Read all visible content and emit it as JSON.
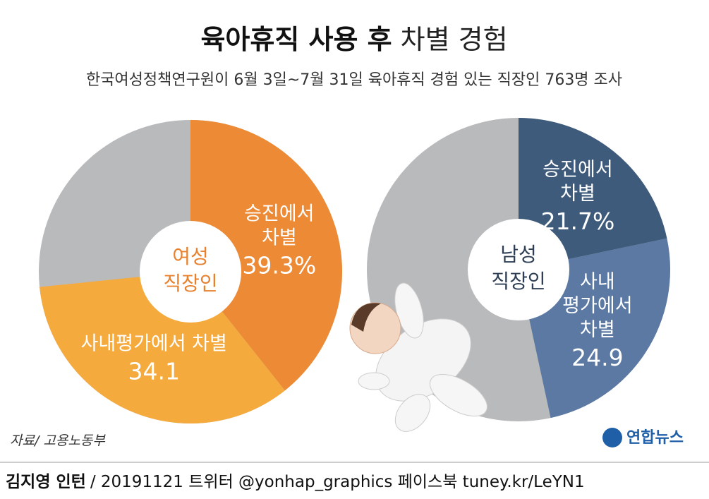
{
  "chart_data": [
    {
      "type": "pie",
      "title": [
        "여성",
        "직장인"
      ],
      "title_color": "#e8812e",
      "categories": [
        [
          "승진에서",
          "차별"
        ],
        [
          "사내평가에서 차별"
        ]
      ],
      "values": [
        39.3,
        34.1
      ],
      "value_labels": [
        "39.3%",
        "34.1"
      ],
      "colors": [
        "#ec8a36",
        "#f5aa3d"
      ]
    },
    {
      "type": "pie",
      "title": [
        "남성",
        "직장인"
      ],
      "title_color": "#2e3f55",
      "categories": [
        [
          "승진에서",
          "차별"
        ],
        [
          "사내",
          "평가에서",
          "차별"
        ]
      ],
      "values": [
        21.7,
        24.9
      ],
      "value_labels": [
        "21.7%",
        "24.9"
      ],
      "colors": [
        "#3f5b7b",
        "#5b79a3"
      ]
    }
  ],
  "header": {
    "title_bold": "육아휴직 사용 후",
    "title_regular": "차별 경험",
    "subtitle": "한국여성정책연구원이 6월 3일~7월 31일 육아휴직 경험 있는 직장인 763명 조사"
  },
  "source": "자료/ 고용노동부",
  "logo": "연합뉴스",
  "footer": {
    "author": "김지영 인턴",
    "info": "/ 20191121 트위터 @yonhap_graphics  페이스북 tuney.kr/LeYN1"
  }
}
